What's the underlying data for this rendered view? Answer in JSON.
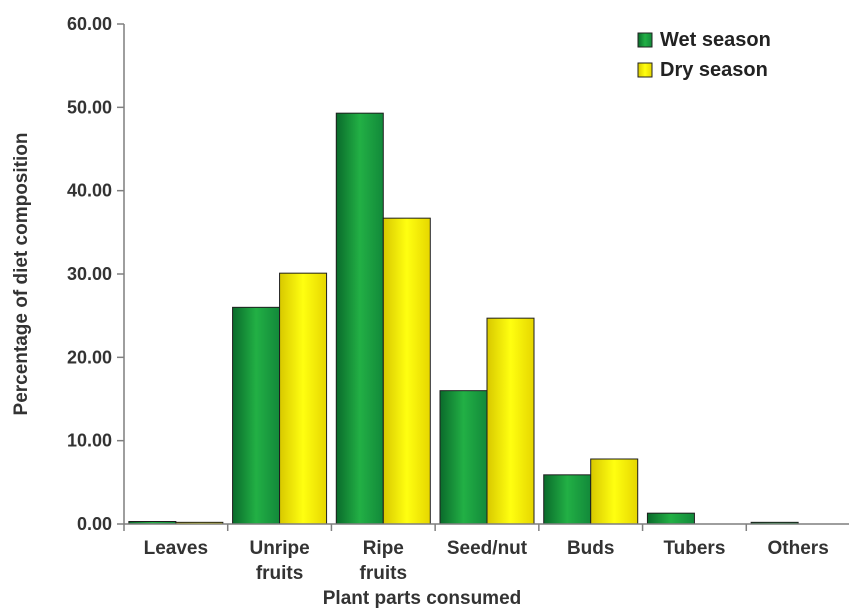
{
  "chart_data": {
    "type": "bar",
    "categories": [
      [
        "Leaves"
      ],
      [
        "Unripe",
        "fruits"
      ],
      [
        "Ripe",
        "fruits"
      ],
      [
        "Seed/nut"
      ],
      [
        "Buds"
      ],
      [
        "Tubers"
      ],
      [
        "Others"
      ]
    ],
    "series": [
      {
        "name": "Wet season",
        "values": [
          0.3,
          26.0,
          49.3,
          16.0,
          5.9,
          1.3,
          0.2
        ],
        "color": "#1a9f3c"
      },
      {
        "name": "Dry season",
        "values": [
          0.2,
          30.1,
          36.7,
          24.7,
          7.8,
          0.0,
          0.0
        ],
        "color": "#f2ea00"
      }
    ],
    "xlabel": "Plant parts consumed",
    "ylabel": "Percentage of diet composition",
    "ylim": [
      0,
      60
    ],
    "yticks": [
      "0.00",
      "10.00",
      "20.00",
      "30.00",
      "40.00",
      "50.00",
      "60.00"
    ],
    "legend_position": "top-right",
    "grid": false
  }
}
